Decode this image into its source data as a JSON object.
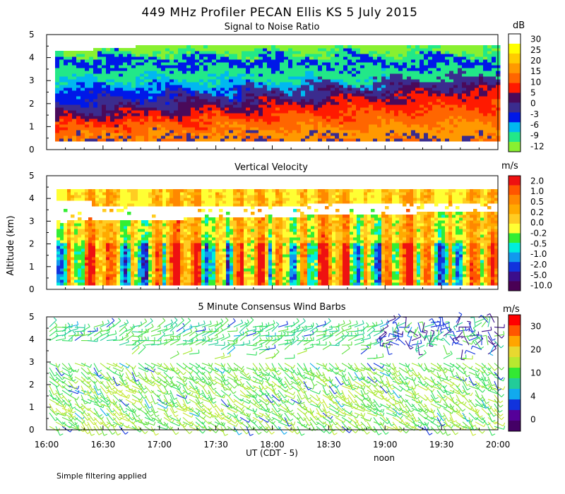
{
  "figure": {
    "title": "449 MHz Profiler PECAN Ellis KS  5 July 2015",
    "ylabel": "Altitude (km)",
    "xlabel": "UT  (CDT - 5)",
    "noon_label": "noon",
    "footnote": "Simple filtering applied"
  },
  "chart_data": [
    {
      "type": "heatmap",
      "title": "Signal to Noise Ratio",
      "xlabel": "UT  (CDT - 5)",
      "ylabel": "Altitude (km)",
      "xlim": [
        16.0,
        20.0
      ],
      "ylim": [
        0,
        5
      ],
      "y_ticks": [
        "0",
        "1",
        "2",
        "3",
        "4",
        "5"
      ],
      "colorbar": {
        "unit": "dB",
        "labels": [
          "30",
          "25",
          "20",
          "15",
          "10",
          "5",
          "0",
          "-3",
          "-6",
          "-9",
          "-12"
        ],
        "colors": [
          "#ffffff",
          "#ffff00",
          "#ffcc00",
          "#ff9900",
          "#ff6600",
          "#ff1a00",
          "#4a0a5a",
          "#3b2c8e",
          "#0018e8",
          "#00b8f0",
          "#22e888",
          "#88f030"
        ]
      }
    },
    {
      "type": "heatmap",
      "title": "Vertical Velocity",
      "xlabel": "UT  (CDT - 5)",
      "ylabel": "Altitude (km)",
      "xlim": [
        16.0,
        20.0
      ],
      "ylim": [
        0,
        5
      ],
      "y_ticks": [
        "0",
        "1",
        "2",
        "3",
        "4",
        "5"
      ],
      "colorbar": {
        "unit": "m/s",
        "labels": [
          "2.0",
          "1.0",
          "0.5",
          "0.2",
          "0.0",
          "-0.2",
          "-0.5",
          "-1.0",
          "-2.0",
          "-5.0",
          "-10.0"
        ],
        "colors": [
          "#ee1111",
          "#ff5500",
          "#ff8800",
          "#ffaa00",
          "#ffcc22",
          "#ffff33",
          "#33ee33",
          "#00eedd",
          "#1199ee",
          "#1133dd",
          "#3b0e8c",
          "#4a0055"
        ]
      }
    },
    {
      "type": "scatter",
      "title": "5 Minute Consensus Wind Barbs",
      "xlabel": "UT  (CDT - 5)",
      "ylabel": "Altitude (km)",
      "xlim": [
        16.0,
        20.0
      ],
      "ylim": [
        0,
        5
      ],
      "y_ticks": [
        "0",
        "1",
        "2",
        "3",
        "4",
        "5"
      ],
      "x_tick_labels": [
        "16:00",
        "16:30",
        "17:00",
        "17:30",
        "18:00",
        "18:30",
        "19:00",
        "19:30",
        "20:00"
      ],
      "colorbar": {
        "unit": "m/s",
        "labels": [
          "30",
          "20",
          "10",
          "4",
          "0"
        ],
        "colors": [
          "#ff0000",
          "#ff5500",
          "#ffa500",
          "#e8d830",
          "#b8e830",
          "#33e833",
          "#22cc99",
          "#11aaee",
          "#1133dd",
          "#550099",
          "#440066"
        ]
      }
    }
  ]
}
